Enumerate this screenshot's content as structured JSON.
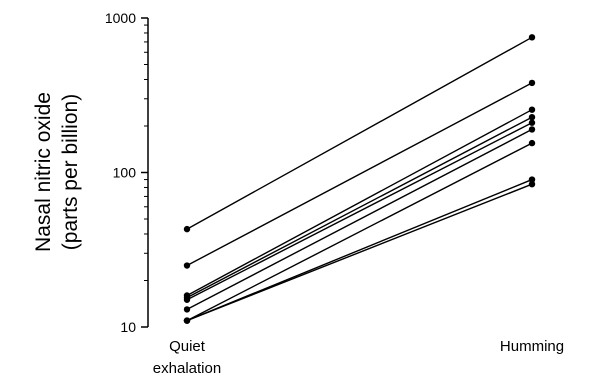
{
  "chart_data": {
    "type": "line",
    "ylabel_lines": [
      "Nasal nitric oxide",
      "(parts per billion)"
    ],
    "yscale": "log",
    "ylim": [
      10,
      1000
    ],
    "yticks": [
      "10",
      "100",
      "1000"
    ],
    "categories": [
      [
        "Quiet",
        "exhalation"
      ],
      [
        "Humming"
      ]
    ],
    "grid": false,
    "series": [
      {
        "values": [
          43,
          750
        ]
      },
      {
        "values": [
          25,
          380
        ]
      },
      {
        "values": [
          16,
          255
        ]
      },
      {
        "values": [
          15.5,
          228
        ]
      },
      {
        "values": [
          15,
          210
        ]
      },
      {
        "values": [
          13,
          190
        ]
      },
      {
        "values": [
          11,
          155
        ]
      },
      {
        "values": [
          11,
          90
        ]
      },
      {
        "values": [
          11,
          84
        ]
      }
    ]
  }
}
